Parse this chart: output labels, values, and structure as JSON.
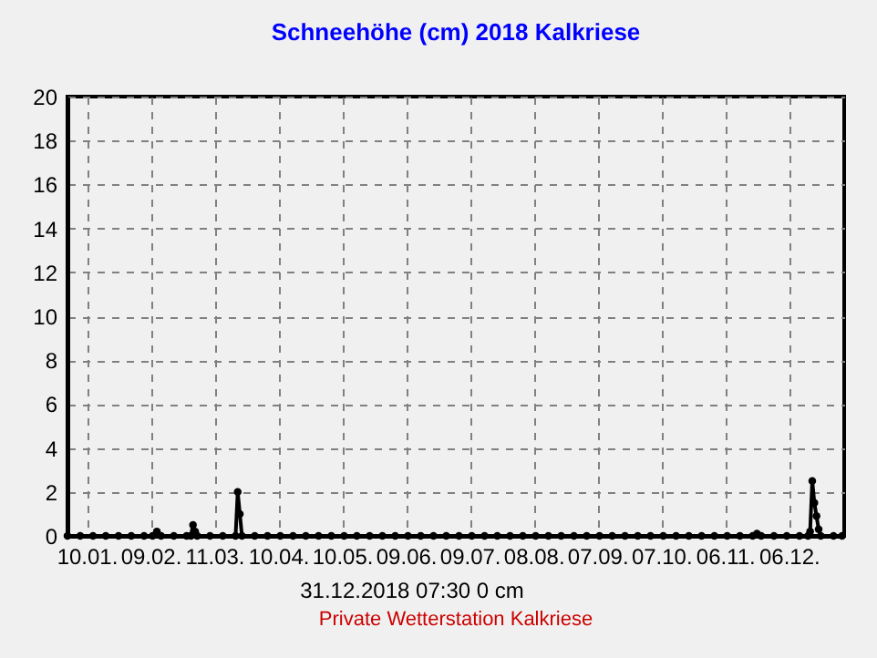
{
  "chart_data": {
    "type": "line",
    "title": "Schneehöhe (cm)  2018      Kalkriese",
    "x": [
      "2018-01-01",
      "2018-01-07",
      "2018-01-13",
      "2018-01-19",
      "2018-01-25",
      "2018-01-31",
      "2018-02-06",
      "2018-02-10",
      "2018-02-12",
      "2018-02-14",
      "2018-02-20",
      "2018-02-26",
      "2018-02-28",
      "2018-03-01",
      "2018-03-02",
      "2018-03-03",
      "2018-03-09",
      "2018-03-15",
      "2018-03-21",
      "2018-03-22",
      "2018-03-23",
      "2018-03-24",
      "2018-03-30",
      "2018-04-05",
      "2018-04-11",
      "2018-04-17",
      "2018-04-23",
      "2018-04-29",
      "2018-05-05",
      "2018-05-11",
      "2018-05-17",
      "2018-05-23",
      "2018-05-29",
      "2018-06-04",
      "2018-06-10",
      "2018-06-16",
      "2018-06-22",
      "2018-06-28",
      "2018-07-04",
      "2018-07-10",
      "2018-07-16",
      "2018-07-22",
      "2018-07-28",
      "2018-08-03",
      "2018-08-09",
      "2018-08-15",
      "2018-08-21",
      "2018-08-27",
      "2018-09-02",
      "2018-09-08",
      "2018-09-14",
      "2018-09-20",
      "2018-09-26",
      "2018-10-02",
      "2018-10-08",
      "2018-10-14",
      "2018-10-20",
      "2018-10-26",
      "2018-11-01",
      "2018-11-07",
      "2018-11-13",
      "2018-11-19",
      "2018-11-21",
      "2018-11-23",
      "2018-11-29",
      "2018-12-05",
      "2018-12-11",
      "2018-12-15",
      "2018-12-16",
      "2018-12-17",
      "2018-12-18",
      "2018-12-19",
      "2018-12-20",
      "2018-12-21",
      "2018-12-27",
      "2018-12-31"
    ],
    "series": [
      {
        "color": "#000000",
        "values": [
          0,
          0,
          0,
          0,
          0,
          0,
          0,
          0,
          0.2,
          0,
          0,
          0,
          0,
          0.5,
          0.2,
          0,
          0,
          0,
          0,
          2,
          1,
          0,
          0,
          0,
          0,
          0,
          0,
          0,
          0,
          0,
          0,
          0,
          0,
          0,
          0,
          0,
          0,
          0,
          0,
          0,
          0,
          0,
          0,
          0,
          0,
          0,
          0,
          0,
          0,
          0,
          0,
          0,
          0,
          0,
          0,
          0,
          0,
          0,
          0,
          0,
          0,
          0,
          0.1,
          0,
          0,
          0,
          0,
          0,
          0.2,
          2.5,
          1.5,
          0.9,
          0.3,
          0,
          0,
          0
        ]
      }
    ],
    "xlim": [
      "2018-01-01",
      "2019-01-01"
    ],
    "xticks": [
      {
        "value": "2018-01-10",
        "label": "10.01."
      },
      {
        "value": "2018-02-09",
        "label": "09.02."
      },
      {
        "value": "2018-03-11",
        "label": "11.03."
      },
      {
        "value": "2018-04-10",
        "label": "10.04."
      },
      {
        "value": "2018-05-10",
        "label": "10.05."
      },
      {
        "value": "2018-06-09",
        "label": "09.06."
      },
      {
        "value": "2018-07-09",
        "label": "09.07."
      },
      {
        "value": "2018-08-08",
        "label": "08.08."
      },
      {
        "value": "2018-09-07",
        "label": "07.09."
      },
      {
        "value": "2018-10-07",
        "label": "07.10."
      },
      {
        "value": "2018-11-06",
        "label": "06.11."
      },
      {
        "value": "2018-12-06",
        "label": "06.12."
      }
    ],
    "ylim": [
      0,
      20
    ],
    "yticks": [
      0,
      2,
      4,
      6,
      8,
      10,
      12,
      14,
      16,
      18,
      20
    ],
    "grid": true,
    "marker": "circle",
    "line_style": "solid",
    "annotations": [
      "31.12.2018  07:30   0 cm",
      "Private Wetterstation Kalkriese"
    ]
  }
}
